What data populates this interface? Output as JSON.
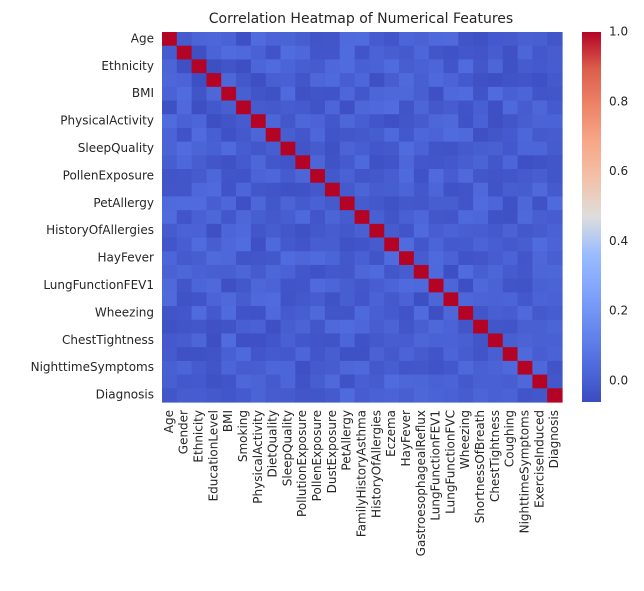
{
  "chart_data": {
    "type": "heatmap",
    "title": "Correlation Heatmap of Numerical Features",
    "xlabel": "",
    "ylabel": "",
    "columns": [
      "Age",
      "Gender",
      "Ethnicity",
      "EducationLevel",
      "BMI",
      "Smoking",
      "PhysicalActivity",
      "DietQuality",
      "SleepQuality",
      "PollutionExposure",
      "PollenExposure",
      "DustExposure",
      "PetAllergy",
      "FamilyHistoryAsthma",
      "HistoryOfAllergies",
      "Eczema",
      "HayFever",
      "GastroesophagealReflux",
      "LungFunctionFEV1",
      "LungFunctionFVC",
      "Wheezing",
      "ShortnessOfBreath",
      "ChestTightness",
      "Coughing",
      "NighttimeSymptoms",
      "ExerciseInduced",
      "Diagnosis"
    ],
    "rows": [
      "Age",
      "Gender",
      "Ethnicity",
      "EducationLevel",
      "BMI",
      "Smoking",
      "PhysicalActivity",
      "DietQuality",
      "SleepQuality",
      "PollutionExposure",
      "PollenExposure",
      "DustExposure",
      "PetAllergy",
      "FamilyHistoryAsthma",
      "HistoryOfAllergies",
      "Eczema",
      "HayFever",
      "GastroesophagealReflux",
      "LungFunctionFEV1",
      "LungFunctionFVC",
      "Wheezing",
      "ShortnessOfBreath",
      "ChestTightness",
      "Coughing",
      "NighttimeSymptoms",
      "ExerciseInduced",
      "Diagnosis"
    ],
    "visible_row_labels": [
      "Age",
      "Ethnicity",
      "BMI",
      "PhysicalActivity",
      "SleepQuality",
      "PollenExposure",
      "PetAllergy",
      "HistoryOfAllergies",
      "HayFever",
      "LungFunctionFEV1",
      "Wheezing",
      "ChestTightness",
      "NighttimeSymptoms",
      "Diagnosis"
    ],
    "diagonal_value": 1.0,
    "off_diagonal_range": [
      -0.05,
      0.05
    ],
    "colormap": "coolwarm",
    "colorbar": {
      "vmin": -0.06,
      "vmax": 1.0,
      "ticks": [
        0.0,
        0.2,
        0.4,
        0.6,
        0.8,
        1.0
      ],
      "tick_labels": [
        "0.0",
        "0.2",
        "0.4",
        "0.6",
        "0.8",
        "1.0"
      ]
    }
  }
}
